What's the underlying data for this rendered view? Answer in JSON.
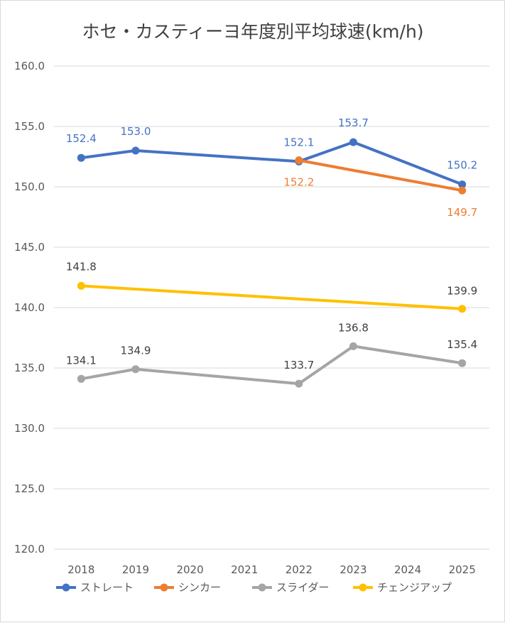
{
  "chart_data": {
    "type": "line",
    "title": "ホセ・カスティーヨ年度別平均球速(km/h)",
    "categories": [
      "2018",
      "2019",
      "2020",
      "2021",
      "2022",
      "2023",
      "2024",
      "2025"
    ],
    "y_tick_labels": [
      "120.0",
      "125.0",
      "130.0",
      "135.0",
      "140.0",
      "145.0",
      "150.0",
      "155.0",
      "160.0"
    ],
    "ylim": [
      120,
      160
    ],
    "grid": true,
    "legend_position": "bottom",
    "series": [
      {
        "name": "ストレート",
        "color": "#4472C4",
        "points": [
          {
            "x": "2018",
            "y": 152.4,
            "label": "152.4"
          },
          {
            "x": "2019",
            "y": 153.0,
            "label": "153.0"
          },
          {
            "x": "2022",
            "y": 152.1,
            "label": "152.1"
          },
          {
            "x": "2023",
            "y": 153.7,
            "label": "153.7"
          },
          {
            "x": "2025",
            "y": 150.2,
            "label": "150.2"
          }
        ]
      },
      {
        "name": "シンカー",
        "color": "#ED7D31",
        "points": [
          {
            "x": "2022",
            "y": 152.2,
            "label": "152.2"
          },
          {
            "x": "2025",
            "y": 149.7,
            "label": "149.7"
          }
        ]
      },
      {
        "name": "スライダー",
        "color": "#A5A5A5",
        "points": [
          {
            "x": "2018",
            "y": 134.1,
            "label": "134.1"
          },
          {
            "x": "2019",
            "y": 134.9,
            "label": "134.9"
          },
          {
            "x": "2022",
            "y": 133.7,
            "label": "133.7"
          },
          {
            "x": "2023",
            "y": 136.8,
            "label": "136.8"
          },
          {
            "x": "2025",
            "y": 135.4,
            "label": "135.4"
          }
        ]
      },
      {
        "name": "チェンジアップ",
        "color": "#FFC000",
        "points": [
          {
            "x": "2018",
            "y": 141.8,
            "label": "141.8"
          },
          {
            "x": "2025",
            "y": 139.9,
            "label": "139.9"
          }
        ]
      }
    ]
  }
}
